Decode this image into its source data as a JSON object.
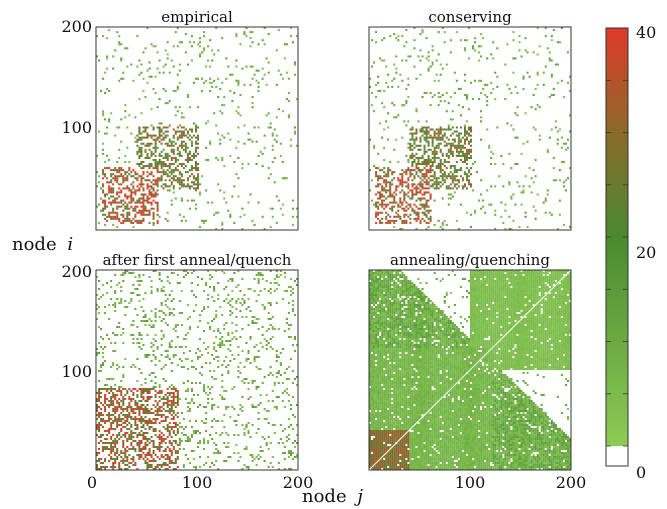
{
  "chart_data": {
    "type": "heatmap",
    "ylabel": "node i",
    "xlabel": "node j",
    "axis_range": [
      0,
      200
    ],
    "x_ticks": [
      "0",
      "100",
      "200"
    ],
    "y_ticks": [
      "100",
      "200"
    ],
    "panels": [
      {
        "title": "empirical",
        "density": "sparse",
        "clusters": [
          {
            "range": [
              5,
              60
            ],
            "level": 40
          },
          {
            "range": [
              40,
              100
            ],
            "level": 30
          }
        ]
      },
      {
        "title": "conserving",
        "density": "sparse",
        "clusters": [
          {
            "range": [
              5,
              60
            ],
            "level": 40
          },
          {
            "range": [
              40,
              100
            ],
            "level": 30
          }
        ]
      },
      {
        "title": "after first anneal/quench",
        "density": "medium",
        "clusters": [
          {
            "range": [
              0,
              80
            ],
            "level": 38
          }
        ]
      },
      {
        "title": "annealing/quenching",
        "density": "dense",
        "clusters": [
          {
            "range": [
              0,
              120
            ],
            "level": 8
          },
          {
            "range": [
              100,
              200
            ],
            "level": 5
          }
        ]
      }
    ],
    "colorbar": {
      "min": 0,
      "max": 40,
      "ticks": [
        "0",
        "20",
        "40"
      ],
      "colors": {
        "low": "#8ccb55",
        "mid": "#4a8a30",
        "high": "#e03a2a",
        "zero": "#ffffff"
      }
    }
  }
}
